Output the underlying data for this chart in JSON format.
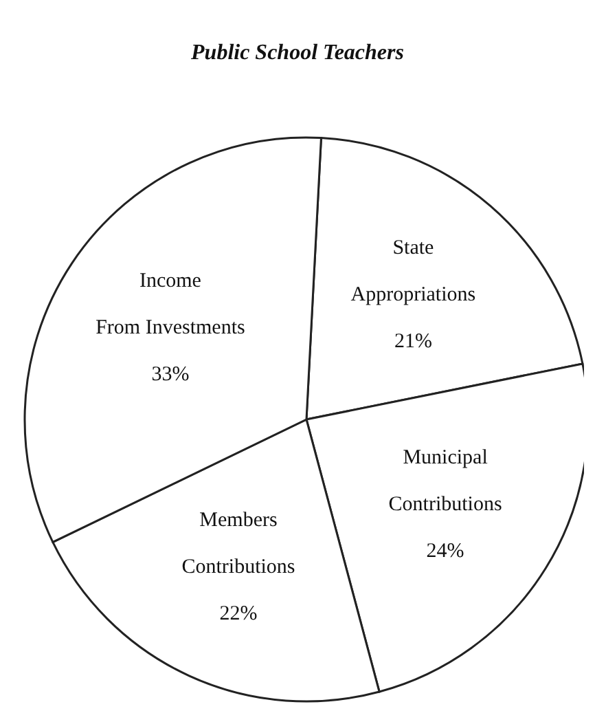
{
  "chart_data": {
    "type": "pie",
    "title": "Public School Teachers",
    "categories": [
      "State Appropriations",
      "Municipal Contributions",
      "Members Contributions",
      "Income From Investments"
    ],
    "values": [
      21,
      24,
      22,
      33
    ],
    "value_labels": [
      "21%",
      "24%",
      "22%",
      "33%"
    ],
    "colors": [
      "#ffffff",
      "#ffffff",
      "#ffffff",
      "#ffffff"
    ]
  }
}
